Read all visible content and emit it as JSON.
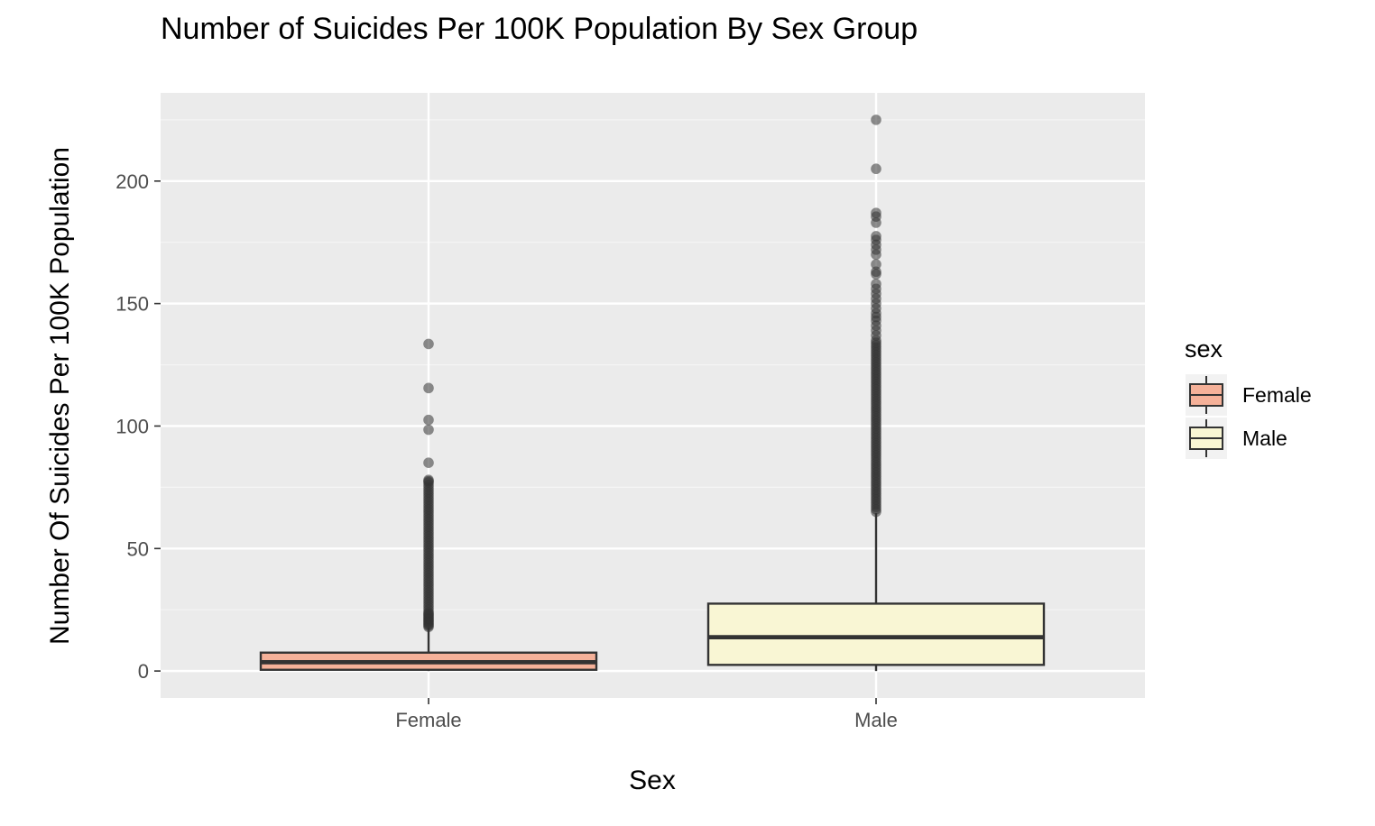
{
  "chart_data": {
    "type": "boxplot",
    "title": "Number of Suicides Per 100K Population By Sex Group",
    "xlabel": "Sex",
    "ylabel": "Number Of Suicides Per 100K Population",
    "categories": [
      "Female",
      "Male"
    ],
    "ylim": [
      -11,
      236
    ],
    "yticks": [
      0,
      50,
      100,
      150,
      200
    ],
    "ytick_labels": [
      "0",
      "50",
      "100",
      "150",
      "200"
    ],
    "grid": true,
    "legend": {
      "title": "sex",
      "position": "right",
      "entries": [
        "Female",
        "Male"
      ]
    },
    "series": [
      {
        "name": "Female",
        "color": "#F5B199",
        "whisker_low": 0,
        "q1": 0.5,
        "median": 3.6,
        "q3": 7.5,
        "whisker_high": 17.8,
        "outliers": [
          18,
          18.5,
          19,
          19.5,
          20,
          20.5,
          21,
          21.5,
          22,
          22.5,
          23,
          23.5,
          24,
          25,
          26,
          27,
          28,
          29,
          30,
          31,
          32,
          33,
          34,
          35,
          36,
          37,
          38,
          39,
          40,
          41,
          42,
          43,
          44,
          45,
          46,
          47,
          48,
          49,
          50,
          51,
          52,
          53,
          54,
          55,
          56,
          57,
          58,
          59,
          60,
          61,
          62,
          63,
          64,
          65,
          66,
          67,
          68,
          69,
          70,
          71,
          72,
          73,
          74,
          75,
          76,
          77,
          77.5,
          78,
          85,
          98.5,
          102.5,
          115.5,
          133.5
        ]
      },
      {
        "name": "Male",
        "color": "#F9F6D4",
        "whisker_low": 0,
        "q1": 2.5,
        "median": 13.8,
        "q3": 27.5,
        "whisker_high": 64.5,
        "outliers": [
          65,
          66,
          67,
          68,
          69,
          70,
          71,
          72,
          73,
          74,
          75,
          76,
          77,
          78,
          79,
          80,
          81,
          82,
          83,
          84,
          85,
          86,
          87,
          88,
          89,
          90,
          91,
          92,
          93,
          94,
          95,
          96,
          97,
          98,
          99,
          100,
          101,
          102,
          103,
          104,
          105,
          106,
          107,
          108,
          109,
          110,
          111,
          112,
          113,
          114,
          115,
          116,
          117,
          118,
          119,
          120,
          121,
          122,
          123,
          124,
          125,
          126,
          127,
          128,
          129,
          130,
          131,
          132,
          133,
          134,
          135,
          137,
          139,
          141,
          143,
          144.5,
          146,
          148,
          150,
          152,
          154,
          156,
          158,
          162,
          163,
          166,
          170,
          172,
          174,
          176,
          177.5,
          183,
          185.5,
          187,
          205,
          225
        ]
      }
    ]
  }
}
